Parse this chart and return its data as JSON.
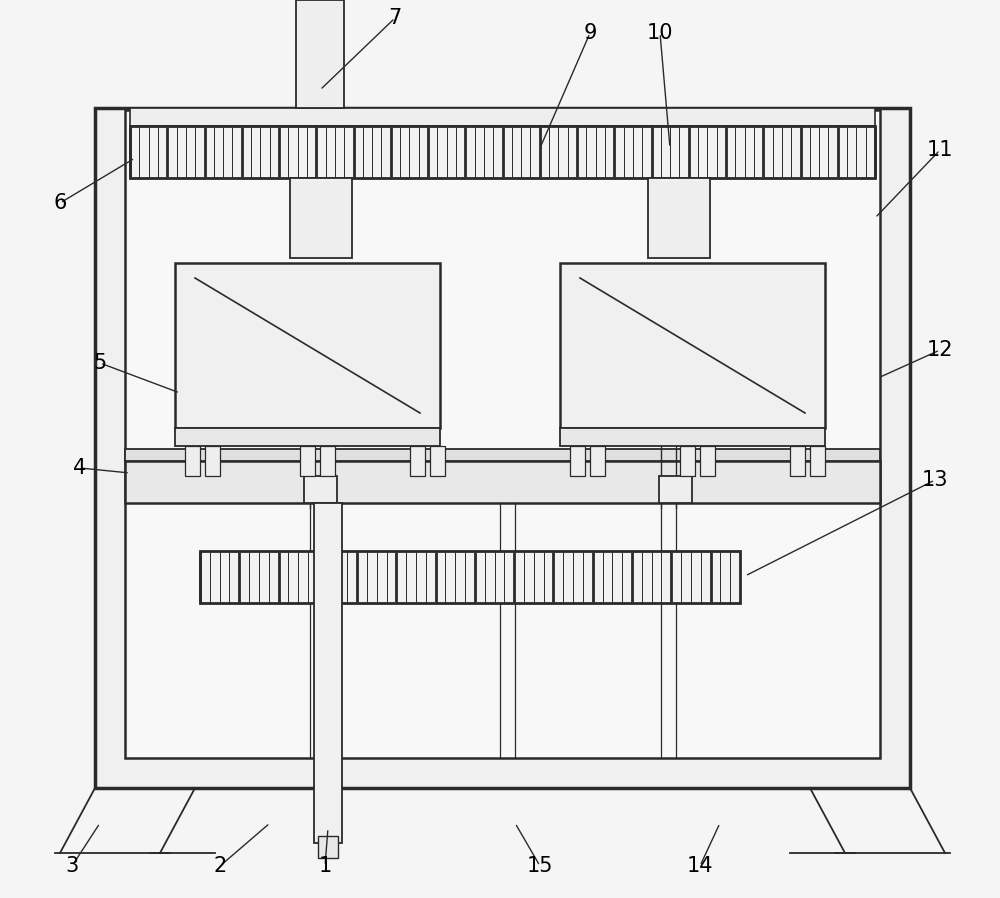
{
  "bg_color": "#f5f5f5",
  "line_color": "#2a2a2a",
  "fill_light": "#f0f0f0",
  "fill_white": "#ffffff",
  "fill_rack": "#e8e8e8",
  "outer_lw": 2.5,
  "inner_lw": 1.8,
  "labels": [
    "1",
    "2",
    "3",
    "4",
    "5",
    "6",
    "7",
    "9",
    "10",
    "11",
    "12",
    "13",
    "14",
    "15"
  ]
}
